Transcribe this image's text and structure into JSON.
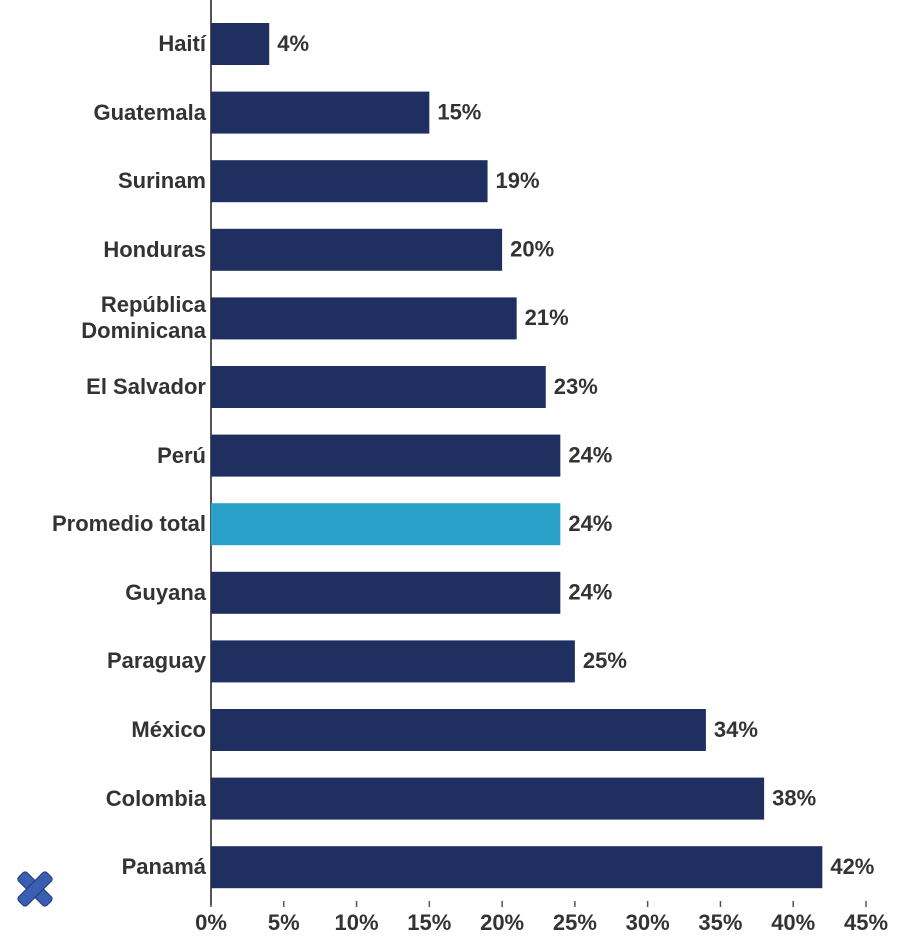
{
  "chart_data": {
    "type": "barh",
    "categories": [
      "Haití",
      "Guatemala",
      "Surinam",
      "Honduras",
      "República Dominicana",
      "El Salvador",
      "Perú",
      "Promedio total",
      "Guyana",
      "Paraguay",
      "México",
      "Colombia",
      "Panamá"
    ],
    "values": [
      4,
      15,
      19,
      20,
      21,
      23,
      24,
      24,
      24,
      25,
      34,
      38,
      42
    ],
    "value_labels": [
      "4%",
      "15%",
      "19%",
      "20%",
      "21%",
      "23%",
      "24%",
      "24%",
      "24%",
      "25%",
      "34%",
      "38%",
      "42%"
    ],
    "colors": [
      "#1f2f5f",
      "#1f2f5f",
      "#1f2f5f",
      "#1f2f5f",
      "#1f2f5f",
      "#1f2f5f",
      "#1f2f5f",
      "#29a0c8",
      "#1f2f5f",
      "#1f2f5f",
      "#1f2f5f",
      "#1f2f5f",
      "#1f2f5f"
    ],
    "xlim": [
      0,
      45
    ],
    "xticks": [
      {
        "value": 0,
        "label": "0%"
      },
      {
        "value": 5,
        "label": "5%"
      },
      {
        "value": 10,
        "label": "10%"
      },
      {
        "value": 15,
        "label": "15%"
      },
      {
        "value": 20,
        "label": "20%"
      },
      {
        "value": 25,
        "label": "25%"
      },
      {
        "value": 30,
        "label": "30%"
      },
      {
        "value": 35,
        "label": "35%"
      },
      {
        "value": 40,
        "label": "40%"
      },
      {
        "value": 45,
        "label": "45%"
      }
    ]
  }
}
